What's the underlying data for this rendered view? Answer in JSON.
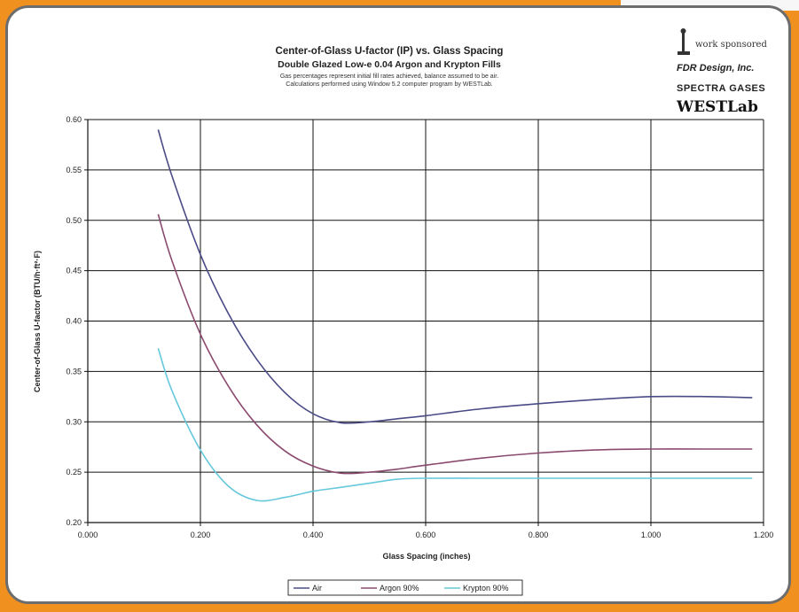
{
  "chart_data": {
    "type": "line",
    "title": "Center-of-Glass U-factor (IP) vs. Glass Spacing",
    "subtitle": "Double Glazed Low-e 0.04 Argon and Krypton Fills",
    "notes": [
      "Gas percentages represent initial fill rates achieved, balance assumed to be air.",
      "Calculations performed using Window 5.2 computer program by WESTLab."
    ],
    "xlabel": "Glass Spacing (inches)",
    "ylabel": "Center-of-Glass U-factor (BTU/h·ft²·F)",
    "xlim": [
      0.0,
      1.2
    ],
    "ylim": [
      0.2,
      0.6
    ],
    "xticks": [
      "0.000",
      "0.200",
      "0.400",
      "0.600",
      "0.800",
      "1.000",
      "1.200"
    ],
    "yticks": [
      "0.20",
      "0.25",
      "0.30",
      "0.35",
      "0.40",
      "0.45",
      "0.50",
      "0.55",
      "0.60"
    ],
    "grid": true,
    "legend_position": "bottom",
    "series": [
      {
        "name": "Air",
        "color": "#4a4b86",
        "x": [
          0.125,
          0.15,
          0.2,
          0.25,
          0.3,
          0.35,
          0.4,
          0.45,
          0.5,
          0.55,
          0.6,
          0.7,
          0.8,
          0.9,
          1.0,
          1.1,
          1.18
        ],
        "y": [
          0.59,
          0.543,
          0.466,
          0.407,
          0.362,
          0.329,
          0.308,
          0.299,
          0.3,
          0.303,
          0.306,
          0.313,
          0.318,
          0.322,
          0.325,
          0.325,
          0.324
        ]
      },
      {
        "name": "Argon 90%",
        "color": "#8a4a6e",
        "x": [
          0.125,
          0.15,
          0.2,
          0.25,
          0.3,
          0.35,
          0.4,
          0.45,
          0.5,
          0.55,
          0.6,
          0.7,
          0.8,
          0.9,
          1.0,
          1.1,
          1.18
        ],
        "y": [
          0.506,
          0.459,
          0.387,
          0.335,
          0.297,
          0.271,
          0.256,
          0.249,
          0.25,
          0.253,
          0.257,
          0.264,
          0.269,
          0.272,
          0.273,
          0.273,
          0.273
        ]
      },
      {
        "name": "Krypton 90%",
        "color": "#66c8dc",
        "x": [
          0.125,
          0.15,
          0.2,
          0.25,
          0.3,
          0.35,
          0.4,
          0.45,
          0.5,
          0.55,
          0.6,
          0.7,
          0.8,
          0.9,
          1.0,
          1.1,
          1.18
        ],
        "y": [
          0.373,
          0.33,
          0.272,
          0.236,
          0.222,
          0.225,
          0.231,
          0.235,
          0.239,
          0.243,
          0.244,
          0.244,
          0.244,
          0.244,
          0.244,
          0.244,
          0.244
        ]
      }
    ]
  },
  "sponsors": {
    "line1": "work sponsored",
    "fdr": "FDR Design, Inc.",
    "spectra": "SPECTRA GASES",
    "westlab": "WESTLab"
  }
}
